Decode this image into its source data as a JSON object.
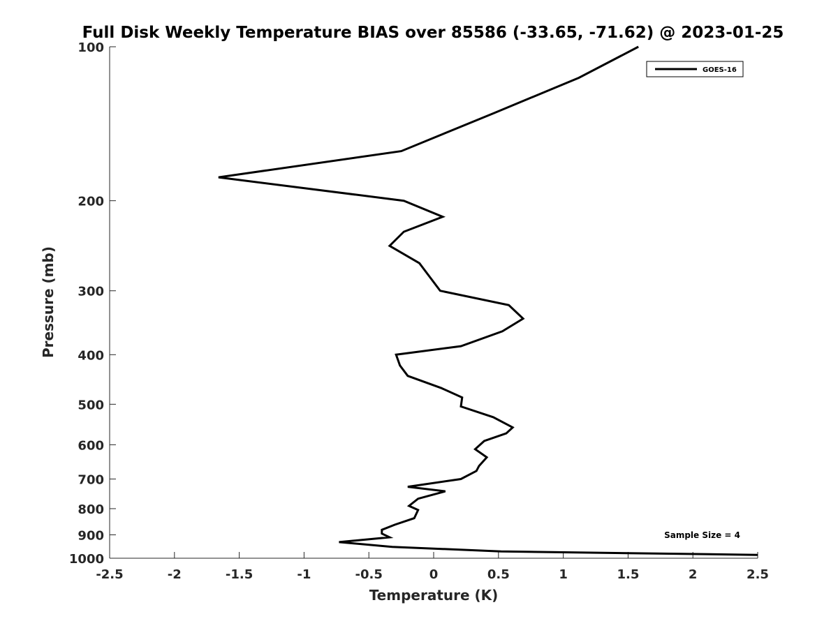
{
  "chart_data": {
    "type": "line",
    "title": "Full Disk Weekly Temperature BIAS over 85586 (-33.65, -71.62) @ 2023-01-25",
    "xlabel": "Temperature (K)",
    "ylabel": "Pressure (mb)",
    "xlim": [
      -2.5,
      2.5
    ],
    "ylim": [
      100,
      1000
    ],
    "yscale": "log",
    "y_reversed": true,
    "grid": false,
    "x_ticks": [
      -2.5,
      -2,
      -1.5,
      -1,
      -0.5,
      0,
      0.5,
      1,
      1.5,
      2,
      2.5
    ],
    "x_tick_labels": [
      "-2.5",
      "-2",
      "-1.5",
      "-1",
      "-0.5",
      "0",
      "0.5",
      "1",
      "1.5",
      "2",
      "2.5"
    ],
    "y_ticks": [
      100,
      200,
      300,
      400,
      500,
      600,
      700,
      800,
      900,
      1000
    ],
    "y_tick_labels": [
      "100",
      "200",
      "300",
      "400",
      "500",
      "600",
      "700",
      "800",
      "900",
      "1000"
    ],
    "legend": {
      "position": "top-right",
      "entries": [
        "GOES-16"
      ]
    },
    "annotation": "Sample Size = 4",
    "series": [
      {
        "name": "GOES-16",
        "color": "#000000",
        "points": [
          [
            1.58,
            100
          ],
          [
            1.12,
            115
          ],
          [
            0.46,
            135
          ],
          [
            -0.25,
            160
          ],
          [
            -1.66,
            180
          ],
          [
            -0.23,
            200
          ],
          [
            0.07,
            215
          ],
          [
            -0.23,
            230
          ],
          [
            -0.34,
            245
          ],
          [
            -0.11,
            265
          ],
          [
            0.05,
            300
          ],
          [
            0.58,
            320
          ],
          [
            0.69,
            340
          ],
          [
            0.53,
            360
          ],
          [
            0.21,
            385
          ],
          [
            -0.29,
            400
          ],
          [
            -0.26,
            420
          ],
          [
            -0.2,
            440
          ],
          [
            0.06,
            465
          ],
          [
            0.22,
            485
          ],
          [
            0.21,
            505
          ],
          [
            0.46,
            530
          ],
          [
            0.61,
            555
          ],
          [
            0.56,
            570
          ],
          [
            0.39,
            590
          ],
          [
            0.32,
            612
          ],
          [
            0.41,
            635
          ],
          [
            0.35,
            660
          ],
          [
            0.33,
            675
          ],
          [
            0.21,
            700
          ],
          [
            -0.2,
            725
          ],
          [
            0.09,
            740
          ],
          [
            -0.12,
            765
          ],
          [
            -0.19,
            790
          ],
          [
            -0.12,
            805
          ],
          [
            -0.15,
            835
          ],
          [
            -0.3,
            860
          ],
          [
            -0.4,
            880
          ],
          [
            -0.4,
            895
          ],
          [
            -0.34,
            910
          ],
          [
            -0.73,
            930
          ],
          [
            -0.32,
            950
          ],
          [
            0.52,
            970
          ],
          [
            2.5,
            985
          ]
        ]
      }
    ]
  },
  "colors": {
    "line": "#000000",
    "axis": "#262626",
    "background": "#ffffff"
  }
}
